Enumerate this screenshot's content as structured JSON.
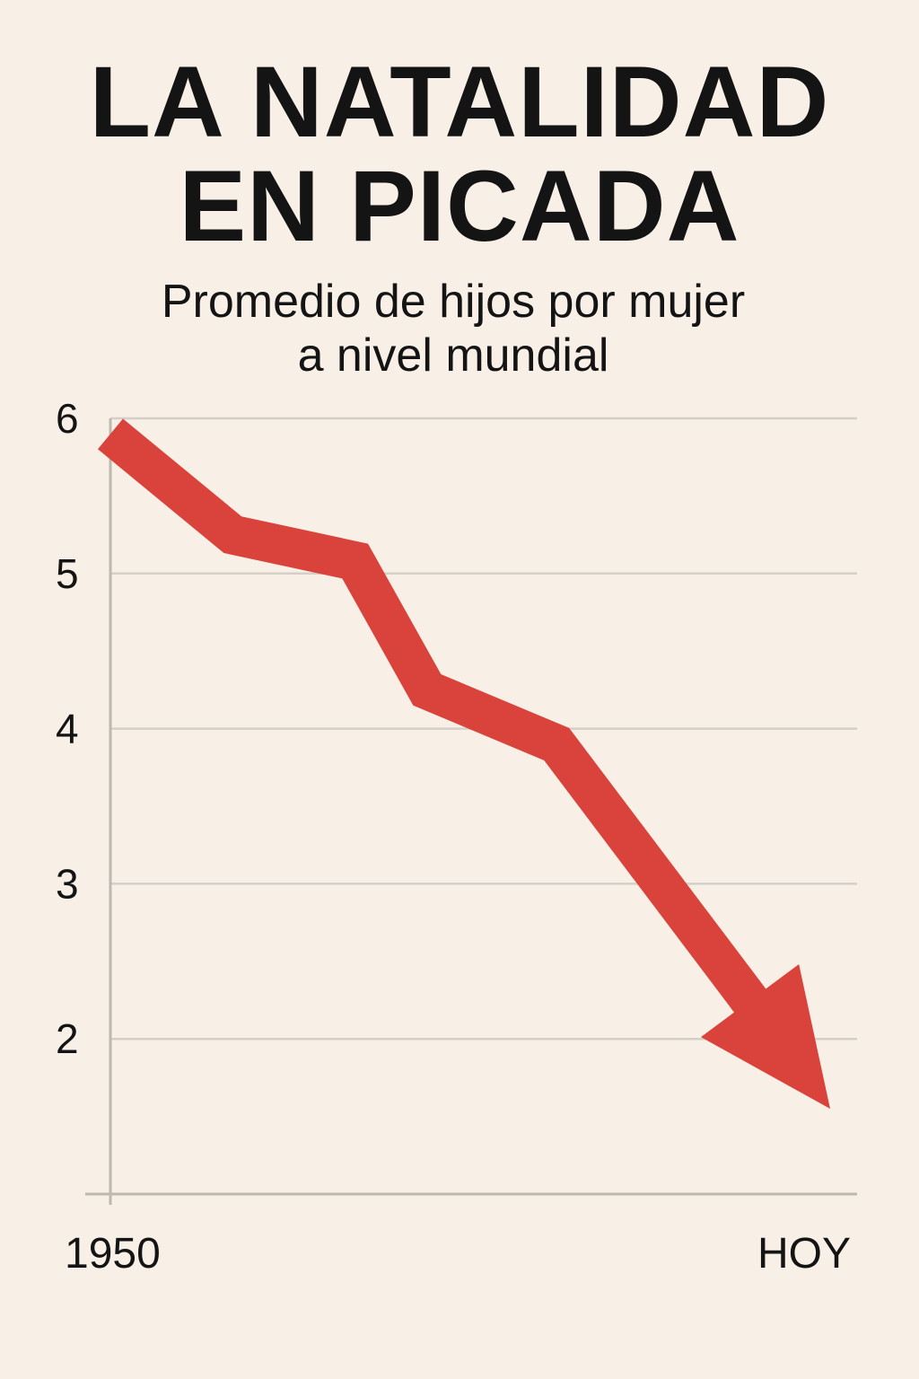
{
  "header": {
    "title_line1": "LA NATALIDAD",
    "title_line2": "EN PICADA",
    "subtitle_line1": "Promedio de hijos por mujer",
    "subtitle_line2": "a nivel mundial"
  },
  "chart_data": {
    "type": "line",
    "title": "LA NATALIDAD EN PICADA",
    "subtitle": "Promedio de hijos por mujer a nivel mundial",
    "xlabel": "",
    "ylabel": "",
    "x_tick_labels": [
      "1950",
      "HOY"
    ],
    "y_ticks": [
      6,
      5,
      4,
      3,
      2
    ],
    "ylim": [
      1,
      6
    ],
    "grid": true,
    "series": [
      {
        "points": [
          {
            "x": 0.0,
            "y": 5.9
          },
          {
            "x": 0.17,
            "y": 5.25
          },
          {
            "x": 0.34,
            "y": 5.08
          },
          {
            "x": 0.44,
            "y": 4.25
          },
          {
            "x": 0.62,
            "y": 3.9
          },
          {
            "x": 0.88,
            "y": 2.3
          },
          {
            "x": 1.0,
            "y": 1.55
          }
        ],
        "style": "arrow",
        "color": "#d9433b"
      }
    ],
    "colors": {
      "background": "#f8f0e6",
      "grid": "#d4cfc8",
      "axis": "#bdb8b1",
      "line": "#d9433b",
      "text": "#141414"
    }
  }
}
